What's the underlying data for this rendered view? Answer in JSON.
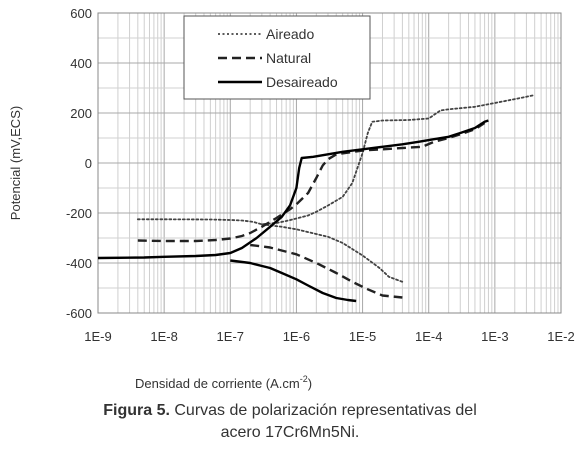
{
  "chart_data": {
    "type": "line",
    "xscale": "log",
    "xlim": [
      1e-09,
      0.01
    ],
    "ylim": [
      -600,
      600
    ],
    "xticks": [
      1e-09,
      1e-08,
      1e-07,
      1e-06,
      1e-05,
      0.0001,
      0.001,
      0.01
    ],
    "xtick_labels": [
      "1E-9",
      "1E-8",
      "1E-7",
      "1E-6",
      "1E-5",
      "1E-4",
      "1E-3",
      "1E-2"
    ],
    "yticks": [
      -600,
      -400,
      -200,
      0,
      200,
      400,
      600
    ],
    "ytick_labels": [
      "-600",
      "-400",
      "-200",
      "0",
      "200",
      "400",
      "600"
    ],
    "xlabel": "Densidad de corriente (A.cm",
    "xlabel_sup": "-2",
    "xlabel_end": ")",
    "ylabel": "Potencial (mV,ECS)",
    "grid": true,
    "legend_position": "top-center",
    "series": [
      {
        "name": "Aireado",
        "style": "dotted",
        "color": "#444444",
        "branches": [
          [
            [
              4e-09,
              -225
            ],
            [
              1e-08,
              -225
            ],
            [
              5e-08,
              -226
            ],
            [
              1e-07,
              -228
            ],
            [
              1.5e-07,
              -230
            ],
            [
              2.2e-07,
              -235
            ],
            [
              2.7e-07,
              -242
            ],
            [
              3e-07,
              -245
            ],
            [
              3.5e-07,
              -243
            ],
            [
              5e-07,
              -240
            ],
            [
              7e-07,
              -232
            ],
            [
              1e-06,
              -222
            ],
            [
              1.5e-06,
              -210
            ],
            [
              2e-06,
              -195
            ],
            [
              3e-06,
              -170
            ],
            [
              5e-06,
              -135
            ],
            [
              7e-06,
              -80
            ],
            [
              1e-05,
              40
            ],
            [
              1.2e-05,
              120
            ],
            [
              1.4e-05,
              165
            ],
            [
              2e-05,
              170
            ],
            [
              5e-05,
              172
            ],
            [
              0.0001,
              178
            ],
            [
              0.00015,
              210
            ],
            [
              0.0002,
              215
            ],
            [
              0.0005,
              225
            ],
            [
              0.001,
              240
            ],
            [
              0.003,
              265
            ],
            [
              0.004,
              272
            ]
          ],
          [
            [
              3e-07,
              -245
            ],
            [
              6e-07,
              -255
            ],
            [
              1e-06,
              -265
            ],
            [
              3e-06,
              -295
            ],
            [
              5e-06,
              -320
            ],
            [
              1e-05,
              -370
            ],
            [
              1.8e-05,
              -420
            ],
            [
              2.5e-05,
              -455
            ],
            [
              4e-05,
              -475
            ]
          ]
        ]
      },
      {
        "name": "Natural",
        "style": "dashed",
        "color": "#222222",
        "branches": [
          [
            [
              4e-09,
              -310
            ],
            [
              1e-08,
              -312
            ],
            [
              3e-08,
              -312
            ],
            [
              6e-08,
              -308
            ],
            [
              1e-07,
              -302
            ],
            [
              1.5e-07,
              -292
            ],
            [
              2e-07,
              -280
            ],
            [
              3e-07,
              -255
            ],
            [
              5e-07,
              -220
            ],
            [
              8e-07,
              -185
            ],
            [
              1e-06,
              -165
            ],
            [
              1.5e-06,
              -120
            ],
            [
              2e-06,
              -60
            ],
            [
              2.5e-06,
              -10
            ],
            [
              3e-06,
              15
            ],
            [
              4e-06,
              35
            ],
            [
              1e-05,
              50
            ],
            [
              2e-05,
              55
            ],
            [
              4e-05,
              60
            ],
            [
              8e-05,
              65
            ],
            [
              0.00012,
              85
            ],
            [
              0.0002,
              100
            ],
            [
              0.0003,
              115
            ],
            [
              0.0005,
              135
            ],
            [
              0.0007,
              160
            ]
          ],
          [
            [
              2e-07,
              -328
            ],
            [
              4e-07,
              -338
            ],
            [
              1e-06,
              -365
            ],
            [
              2e-06,
              -400
            ],
            [
              4e-06,
              -440
            ],
            [
              7e-06,
              -475
            ],
            [
              1.2e-05,
              -505
            ],
            [
              2e-05,
              -530
            ],
            [
              4e-05,
              -538
            ]
          ]
        ]
      },
      {
        "name": "Desaireado",
        "style": "solid",
        "color": "#000000",
        "branches": [
          [
            [
              1e-09,
              -380
            ],
            [
              5e-09,
              -378
            ],
            [
              1e-08,
              -375
            ],
            [
              3e-08,
              -372
            ],
            [
              6e-08,
              -368
            ],
            [
              1e-07,
              -360
            ],
            [
              1.5e-07,
              -340
            ],
            [
              2.5e-07,
              -300
            ],
            [
              4e-07,
              -255
            ],
            [
              6e-07,
              -215
            ],
            [
              8e-07,
              -170
            ],
            [
              1e-06,
              -100
            ],
            [
              1.1e-06,
              -20
            ],
            [
              1.2e-06,
              20
            ],
            [
              1.8e-06,
              25
            ],
            [
              3e-06,
              35
            ],
            [
              5e-06,
              45
            ],
            [
              1e-05,
              55
            ],
            [
              2e-05,
              65
            ],
            [
              4e-05,
              75
            ],
            [
              7e-05,
              85
            ],
            [
              0.00012,
              95
            ],
            [
              0.0002,
              105
            ],
            [
              0.0003,
              120
            ],
            [
              0.0005,
              140
            ],
            [
              0.0007,
              165
            ],
            [
              0.0008,
              170
            ]
          ],
          [
            [
              1e-07,
              -390
            ],
            [
              2e-07,
              -400
            ],
            [
              4e-07,
              -420
            ],
            [
              6e-07,
              -440
            ],
            [
              1e-06,
              -465
            ],
            [
              1.5e-06,
              -490
            ],
            [
              2.5e-06,
              -520
            ],
            [
              4e-06,
              -540
            ],
            [
              6e-06,
              -548
            ],
            [
              8e-06,
              -552
            ]
          ]
        ]
      }
    ]
  },
  "caption": {
    "label": "Figura 5.",
    "line1": " Curvas de polarización representativas del",
    "line2": "acero 17Cr6Mn5Ni."
  }
}
